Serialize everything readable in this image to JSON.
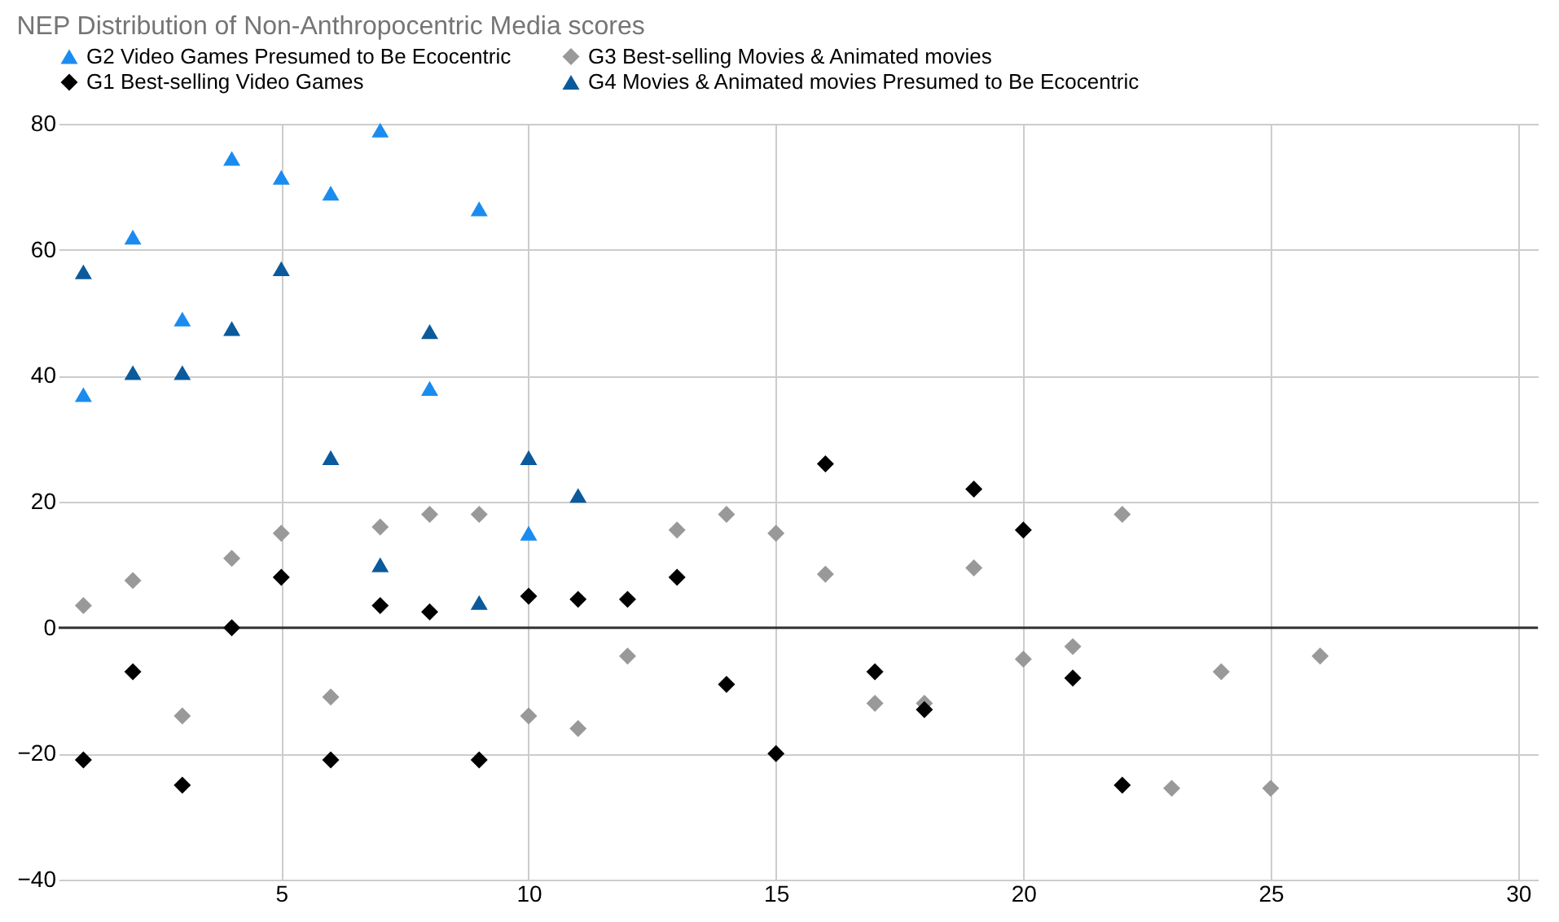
{
  "chart_data": {
    "type": "scatter",
    "title": "NEP Distribution of Non-Anthropocentric Media scores",
    "series": [
      {
        "name": "G2 Video Games Presumed to Be Ecocentric",
        "color": "#1a8cf0",
        "marker": "triangle",
        "x": [
          1,
          2,
          3,
          4,
          5,
          6,
          7,
          8,
          9,
          10
        ],
        "values": [
          37,
          62,
          49,
          74.5,
          71.5,
          69,
          79,
          38,
          66.5,
          15
        ]
      },
      {
        "name": "G3 Best-selling Movies & Animated movies",
        "color": "#999999",
        "marker": "diamond",
        "x": [
          1,
          2,
          3,
          4,
          5,
          6,
          7,
          8,
          9,
          10,
          11,
          12,
          13,
          14,
          15,
          16,
          17,
          18,
          19,
          20,
          21,
          22,
          23,
          24,
          25,
          26
        ],
        "values": [
          3.5,
          7.5,
          -14,
          11,
          15,
          -11,
          16,
          18,
          18,
          -14,
          -16,
          -4.5,
          15.5,
          18,
          15,
          8.5,
          -12,
          -12,
          9.5,
          -5,
          -3,
          18,
          -25.5,
          -7,
          -25.5,
          -4.5
        ]
      },
      {
        "name": "G1 Best-selling Video Games",
        "color": "#000000",
        "marker": "diamond",
        "x": [
          1,
          2,
          3,
          4,
          5,
          6,
          7,
          8,
          9,
          10,
          11,
          12,
          13,
          14,
          15,
          16,
          17,
          18,
          19,
          20,
          21,
          22
        ],
        "values": [
          -21,
          -7,
          -25,
          0,
          8,
          -21,
          3.5,
          2.5,
          -21,
          5,
          4.5,
          4.5,
          8,
          -9,
          -20,
          26,
          -7,
          -13,
          22,
          15.5,
          -8,
          -25
        ]
      },
      {
        "name": "G4 Movies & Animated movies Presumed to Be Ecocentric",
        "color": "#0b5a9c",
        "marker": "triangle",
        "x": [
          1,
          2,
          3,
          4,
          5,
          6,
          7,
          8,
          9,
          10,
          11
        ],
        "values": [
          56.5,
          40.5,
          40.5,
          47.5,
          57,
          27,
          10,
          47,
          4,
          27,
          21
        ]
      }
    ],
    "xlim": [
      0.5,
      30.4
    ],
    "xticks": [
      5,
      10,
      15,
      20,
      25,
      30
    ],
    "ylim": [
      -40,
      80
    ],
    "yticks": [
      -40,
      -20,
      0,
      20,
      40,
      60,
      80
    ],
    "grid": true,
    "legend": "top",
    "ref_lines": [
      {
        "axis": "y",
        "value": 0,
        "color": "#333333"
      }
    ]
  }
}
